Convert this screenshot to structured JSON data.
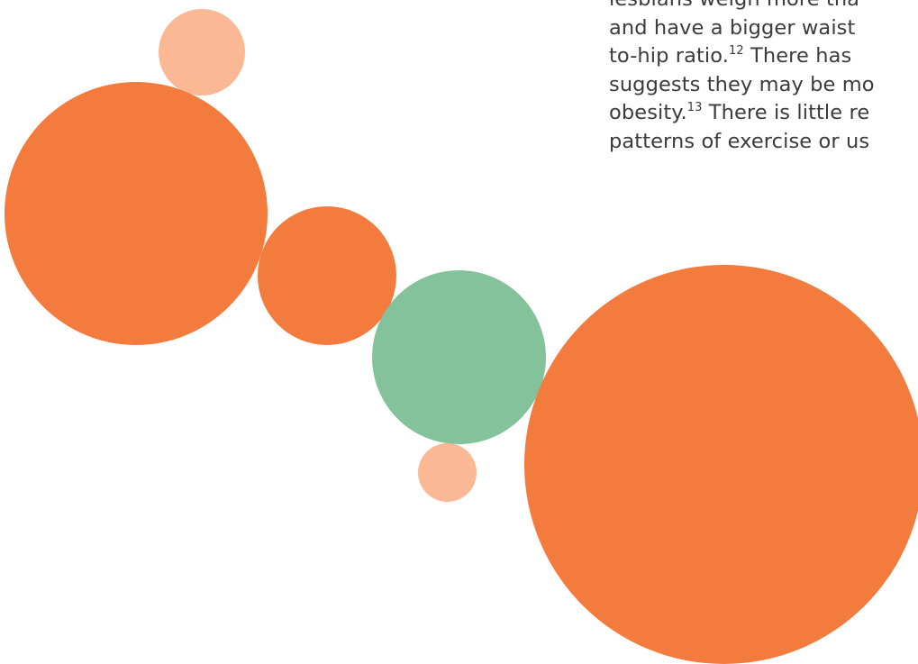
{
  "body_text": {
    "line1_a": "lesbians weigh more tha",
    "line2_a": "and have a bigger waist",
    "line3_a": "to-hip ratio.",
    "line3_ref": "12",
    "line3_b": " There has",
    "line4_a": "suggests they may be mo",
    "line5_a": "obesity.",
    "line5_ref": "13",
    "line5_b": " There is little re",
    "line6_a": "patterns of exercise or us"
  },
  "colors": {
    "orange": "#f47b3e",
    "peach": "#fbb894",
    "green": "#83c29a",
    "text": "#3b3b3b"
  }
}
